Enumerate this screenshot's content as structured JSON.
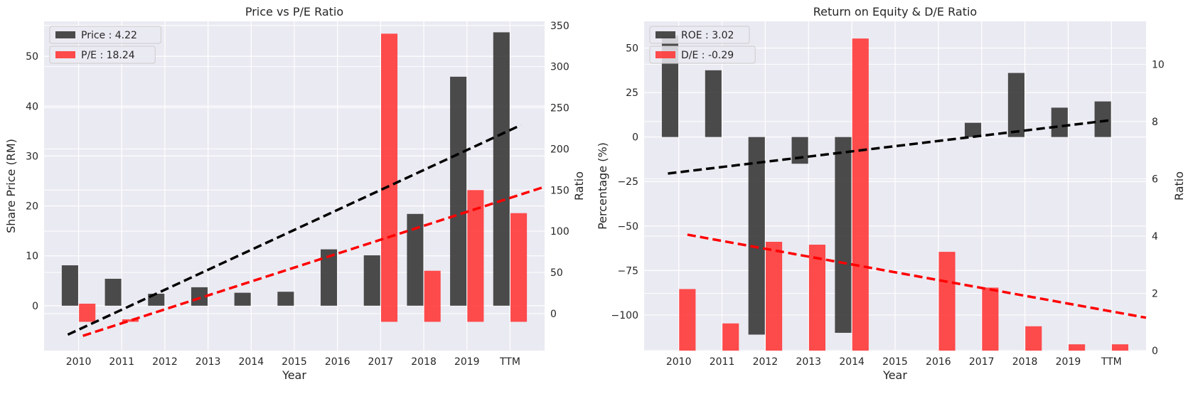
{
  "colors": {
    "background": "#ffffff",
    "plot_background": "#eaeaf2",
    "grid": "#ffffff",
    "dark_bar": "#333333",
    "red_bar": "#ff3333",
    "trend_dark": "#000000",
    "trend_red": "#ff0000"
  },
  "chart_data": [
    {
      "type": "bar",
      "title": "Price vs P/E Ratio",
      "xlabel": "Year",
      "ylabel": "Share Price (RM)",
      "y2label": "Ratio",
      "categories": [
        "2010",
        "2011",
        "2012",
        "2013",
        "2014",
        "2015",
        "2016",
        "2017",
        "2018",
        "2019",
        "TTM"
      ],
      "ylim": [
        -9,
        57
      ],
      "y2lim": [
        -45,
        355
      ],
      "yticks": [
        0,
        10,
        20,
        30,
        40,
        50
      ],
      "y2ticks": [
        0,
        50,
        100,
        150,
        200,
        250,
        300,
        350
      ],
      "grid": true,
      "legend_position": "top-left",
      "series": [
        {
          "name": "Price : 4.22",
          "axis": "left",
          "color": "dark",
          "values": [
            8.1,
            5.4,
            2.4,
            3.7,
            2.6,
            2.8,
            11.3,
            10.1,
            18.4,
            45.9,
            54.8
          ]
        },
        {
          "name": "P/E : 18.24",
          "axis": "right",
          "color": "red",
          "values": [
            12,
            -7,
            null,
            null,
            null,
            null,
            null,
            340,
            52,
            150,
            122
          ]
        }
      ],
      "trend_lines": [
        {
          "axis": "left",
          "color": "dark",
          "from": [
            -0.25,
            -5.8
          ],
          "to": [
            10.25,
            36.2
          ]
        },
        {
          "axis": "right",
          "color": "red",
          "from": [
            0.1,
            -27
          ],
          "to": [
            10.8,
            154
          ]
        }
      ]
    },
    {
      "type": "bar",
      "title": "Return on Equity & D/E Ratio",
      "xlabel": "Year",
      "ylabel": "Percentage (%)",
      "y2label": "Ratio",
      "categories": [
        "2010",
        "2011",
        "2012",
        "2013",
        "2014",
        "2015",
        "2016",
        "2017",
        "2018",
        "2019",
        "TTM"
      ],
      "ylim": [
        -120,
        65
      ],
      "y2lim": [
        0,
        11.5
      ],
      "yticks": [
        -100,
        -75,
        -50,
        -25,
        0,
        25,
        50
      ],
      "y2ticks": [
        0,
        2,
        4,
        6,
        8,
        10
      ],
      "grid": true,
      "legend_position": "top-left",
      "series": [
        {
          "name": "ROE : 3.02",
          "axis": "left",
          "color": "dark",
          "values": [
            57,
            37.5,
            -111,
            -15,
            -110,
            null,
            null,
            8,
            36,
            16.5,
            20
          ]
        },
        {
          "name": "D/E : -0.29",
          "axis": "right",
          "color": "red",
          "values": [
            2.15,
            0.95,
            3.8,
            3.7,
            10.9,
            null,
            3.45,
            2.2,
            0.85,
            0.22,
            0.22
          ]
        }
      ],
      "trend_lines": [
        {
          "axis": "left",
          "color": "dark",
          "from": [
            -0.25,
            -20.5
          ],
          "to": [
            10,
            9.5
          ]
        },
        {
          "axis": "right",
          "color": "red",
          "from": [
            0.2,
            4.05
          ],
          "to": [
            10.8,
            1.15
          ]
        }
      ]
    }
  ]
}
